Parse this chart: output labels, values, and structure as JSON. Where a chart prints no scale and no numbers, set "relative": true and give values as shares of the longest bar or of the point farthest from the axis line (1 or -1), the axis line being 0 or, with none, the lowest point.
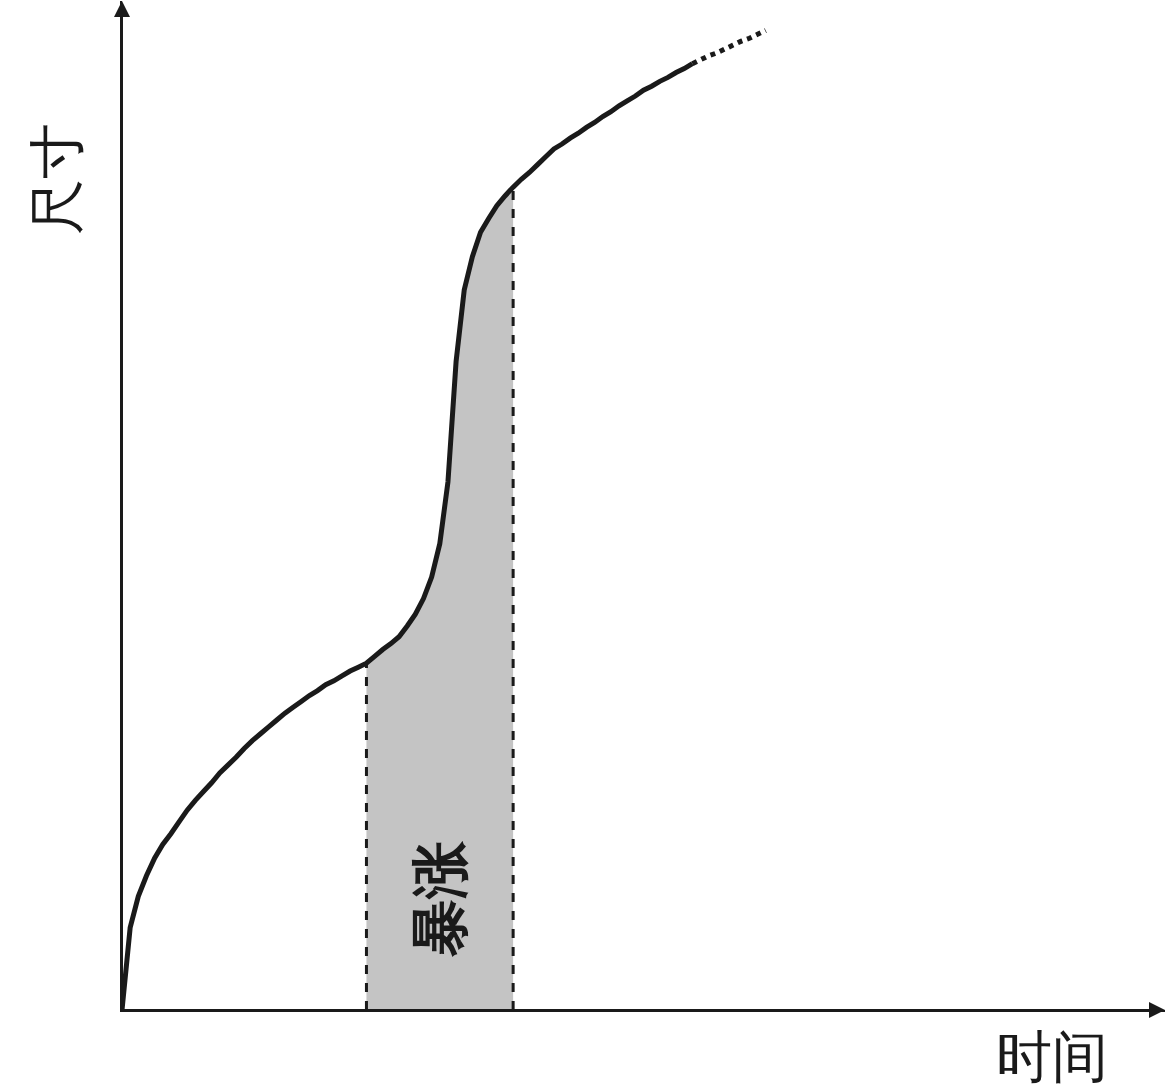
{
  "chart_data": {
    "type": "line",
    "relative": true,
    "xlabel": "时间",
    "ylabel": "尺寸",
    "categories": [
      null,
      null,
      null,
      null,
      null,
      null,
      null,
      null,
      null,
      null,
      null,
      null,
      null,
      null,
      null,
      null,
      null,
      null,
      null,
      null,
      null,
      null,
      null,
      null,
      null,
      null,
      null,
      null,
      null,
      null,
      null,
      null,
      null,
      null,
      null,
      null,
      null,
      null,
      null,
      null,
      null,
      null,
      null,
      null,
      null,
      null,
      null,
      null,
      null,
      null,
      null,
      null,
      null,
      null,
      null,
      null,
      null,
      null,
      null,
      null,
      null,
      null,
      null,
      null,
      null,
      null,
      null,
      null,
      null,
      null,
      null,
      null,
      null,
      null,
      null,
      null,
      null,
      null,
      null,
      null,
      null,
      null,
      null,
      null,
      null,
      null,
      null,
      null,
      null,
      null,
      null,
      null,
      null,
      null,
      null,
      null,
      null,
      null,
      null,
      null,
      null,
      null,
      null,
      null,
      null,
      null,
      null,
      null,
      null,
      null,
      null,
      null,
      null,
      null,
      null,
      null,
      null,
      null,
      null,
      null,
      null,
      null,
      null,
      null,
      null,
      null,
      null,
      null,
      null
    ],
    "series": [
      {
        "type": "area",
        "name": "暴涨",
        "color": "#c4c4c4",
        "line_style": "dashed",
        "values": [
          null,
          null,
          null,
          null,
          null,
          null,
          null,
          null,
          null,
          null,
          null,
          null,
          null,
          null,
          null,
          null,
          null,
          null,
          null,
          null,
          null,
          null,
          null,
          null,
          null,
          null,
          null,
          null,
          null,
          null,
          0.354,
          0.361,
          0.368,
          0.374,
          0.381,
          0.392,
          0.404,
          0.42,
          0.442,
          0.476,
          0.539,
          0.662,
          0.735,
          0.769,
          0.794,
          0.808,
          0.821,
          0.831,
          0.84,
          null,
          null,
          null,
          null,
          null,
          null,
          null,
          null,
          null,
          null,
          null,
          null,
          null,
          null,
          null,
          null,
          null,
          null,
          null,
          null,
          null,
          null,
          null,
          null,
          null,
          null,
          null,
          null,
          null,
          null,
          null,
          null,
          null,
          null,
          null,
          null,
          null,
          null,
          null,
          null,
          null,
          null,
          null,
          null,
          null,
          null,
          null,
          null,
          null,
          null,
          null,
          null,
          null,
          null,
          null,
          null,
          null,
          null,
          null,
          null,
          null,
          null,
          null,
          null,
          null,
          null,
          null,
          null,
          null,
          null,
          null,
          null,
          null,
          null,
          null,
          null,
          null,
          null,
          null,
          null
        ]
      },
      {
        "color": "#1a1a1a",
        "line_style": "solid",
        "values": [
          0,
          0.084,
          0.116,
          0.137,
          0.155,
          0.169,
          0.18,
          0.192,
          0.204,
          0.214,
          0.223,
          0.232,
          0.242,
          0.25,
          0.258,
          0.267,
          0.275,
          0.282,
          0.289,
          0.296,
          0.303,
          0.309,
          0.315,
          0.321,
          0.326,
          0.332,
          0.336,
          0.341,
          0.346,
          0.35,
          0.354,
          0.361,
          0.368,
          0.374,
          0.381,
          0.392,
          0.404,
          0.42,
          0.442,
          0.476,
          0.539,
          0.662,
          0.735,
          0.769,
          0.794,
          0.808,
          0.821,
          0.831,
          0.84,
          0.848,
          0.855,
          0.863,
          0.871,
          0.879,
          0.884,
          0.89,
          0.895,
          0.901,
          0.906,
          0.912,
          0.917,
          0.923,
          0.928,
          0.933,
          0.939,
          0.943,
          0.948,
          0.952,
          0.957,
          0.961,
          0.966,
          null,
          null,
          null,
          null,
          null,
          null,
          null,
          null,
          null,
          null,
          null,
          null,
          null,
          null,
          null,
          null,
          null,
          null,
          null,
          null,
          null,
          null,
          null,
          null,
          null,
          null,
          null,
          null,
          null,
          null,
          null,
          null,
          null,
          null,
          null,
          null,
          null,
          null,
          null,
          null,
          null,
          null,
          null,
          null,
          null,
          null,
          null,
          null,
          null,
          null,
          null,
          null,
          null,
          null,
          null,
          null,
          null,
          null
        ]
      },
      {
        "color": "#1a1a1a",
        "line_style": "dotted",
        "values": [
          null,
          null,
          null,
          null,
          null,
          null,
          null,
          null,
          null,
          null,
          null,
          null,
          null,
          null,
          null,
          null,
          null,
          null,
          null,
          null,
          null,
          null,
          null,
          null,
          null,
          null,
          null,
          null,
          null,
          null,
          null,
          null,
          null,
          null,
          null,
          null,
          null,
          null,
          null,
          null,
          null,
          null,
          null,
          null,
          null,
          null,
          null,
          null,
          null,
          null,
          null,
          null,
          null,
          null,
          null,
          null,
          null,
          null,
          null,
          null,
          null,
          null,
          null,
          null,
          null,
          null,
          null,
          null,
          null,
          null,
          0.966,
          0.97,
          0.974,
          0.977,
          0.981,
          0.985,
          0.989,
          0.992,
          0.996,
          1,
          null,
          null,
          null,
          null,
          null,
          null,
          null,
          null,
          null,
          null,
          null,
          null,
          null,
          null,
          null,
          null,
          null,
          null,
          null,
          null,
          null,
          null,
          null,
          null,
          null,
          null,
          null,
          null,
          null,
          null,
          null,
          null,
          null,
          null,
          null,
          null,
          null,
          null,
          null,
          null,
          null,
          null,
          null,
          null,
          null,
          null,
          null,
          null,
          null
        ]
      }
    ]
  }
}
